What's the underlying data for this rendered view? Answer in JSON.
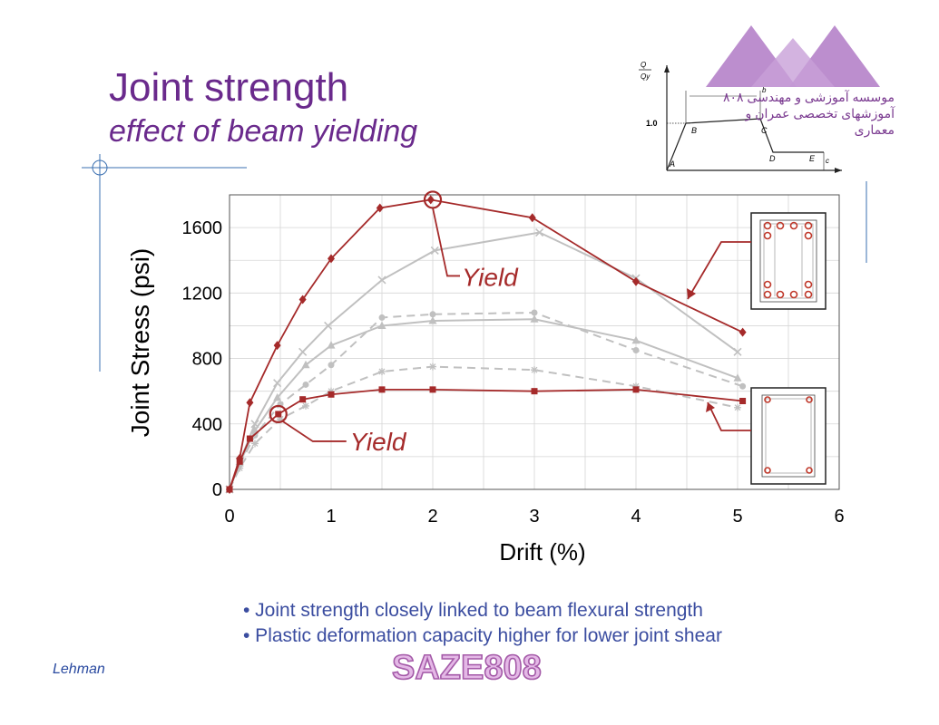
{
  "slide": {
    "title": "Joint strength",
    "subtitle": "effect of beam yielding",
    "bullets": [
      "• Joint strength closely linked to beam flexural strength",
      "• Plastic deformation capacity higher for lower joint shear"
    ],
    "author": "Lehman",
    "watermark": "SAZE808",
    "watermark_persian_line1": "موسسه آموزشی و مهندسی ۸۰۸",
    "watermark_persian_line2": "آموزشهای تخصصی عمران و معماری"
  },
  "inset": {
    "y_label_top": "Q",
    "y_label_bottom": "Qy",
    "y_tick": "1.0",
    "points": [
      "A",
      "B",
      "C",
      "D",
      "E"
    ],
    "b_label": "b",
    "c_label": "c",
    "x_axis_color": "#222222"
  },
  "chart_data": {
    "type": "line",
    "title": "",
    "xlabel": "Drift (%)",
    "ylabel": "Joint Stress (psi)",
    "xlim": [
      0,
      6
    ],
    "ylim": [
      0,
      1800
    ],
    "xticks": [
      "0",
      "1",
      "2",
      "3",
      "4",
      "5",
      "6"
    ],
    "yticks": [
      "0",
      "400",
      "800",
      "1200",
      "1600"
    ],
    "grid": true,
    "series": [
      {
        "color": "#a52a2a",
        "marker": "diamond",
        "style": "solid",
        "x": [
          0,
          0.1,
          0.2,
          0.47,
          0.72,
          1.0,
          1.48,
          1.98,
          2.98,
          4.0,
          5.05
        ],
        "y": [
          0,
          190,
          530,
          880,
          1160,
          1410,
          1720,
          1770,
          1660,
          1270,
          960
        ]
      },
      {
        "color": "#c0c0c0",
        "marker": "x",
        "style": "solid",
        "x": [
          0,
          0.1,
          0.25,
          0.47,
          0.72,
          0.97,
          1.5,
          2.02,
          3.05,
          4.0,
          5.0
        ],
        "y": [
          0,
          170,
          400,
          650,
          840,
          1000,
          1280,
          1460,
          1570,
          1290,
          840
        ]
      },
      {
        "color": "#c0c0c0",
        "marker": "triangle",
        "style": "solid",
        "x": [
          0,
          0.1,
          0.25,
          0.47,
          0.75,
          1.0,
          1.5,
          2.0,
          3.0,
          4.0,
          5.0
        ],
        "y": [
          0,
          160,
          360,
          560,
          760,
          880,
          1000,
          1030,
          1040,
          910,
          680
        ]
      },
      {
        "color": "#c0c0c0",
        "marker": "circle",
        "style": "dashed",
        "x": [
          0,
          0.1,
          0.25,
          0.5,
          0.75,
          1.0,
          1.5,
          2.0,
          3.0,
          4.0,
          5.05
        ],
        "y": [
          0,
          150,
          330,
          520,
          640,
          760,
          1050,
          1070,
          1080,
          850,
          630
        ]
      },
      {
        "color": "#c0c0c0",
        "marker": "star",
        "style": "dashed",
        "x": [
          0,
          0.1,
          0.25,
          0.5,
          0.75,
          1.0,
          1.5,
          2.0,
          3.0,
          4.0,
          5.0
        ],
        "y": [
          0,
          130,
          280,
          430,
          510,
          600,
          720,
          750,
          730,
          630,
          500
        ]
      },
      {
        "color": "#a52a2a",
        "marker": "square",
        "style": "solid",
        "x": [
          0,
          0.1,
          0.2,
          0.48,
          0.72,
          1.0,
          1.5,
          2.0,
          3.0,
          4.0,
          5.05
        ],
        "y": [
          0,
          170,
          310,
          460,
          550,
          580,
          610,
          610,
          600,
          610,
          540
        ]
      }
    ],
    "annotations": [
      {
        "text": "Yield",
        "x": 2.0,
        "y": 1770
      },
      {
        "text": "Yield",
        "x": 0.48,
        "y": 460
      }
    ]
  }
}
